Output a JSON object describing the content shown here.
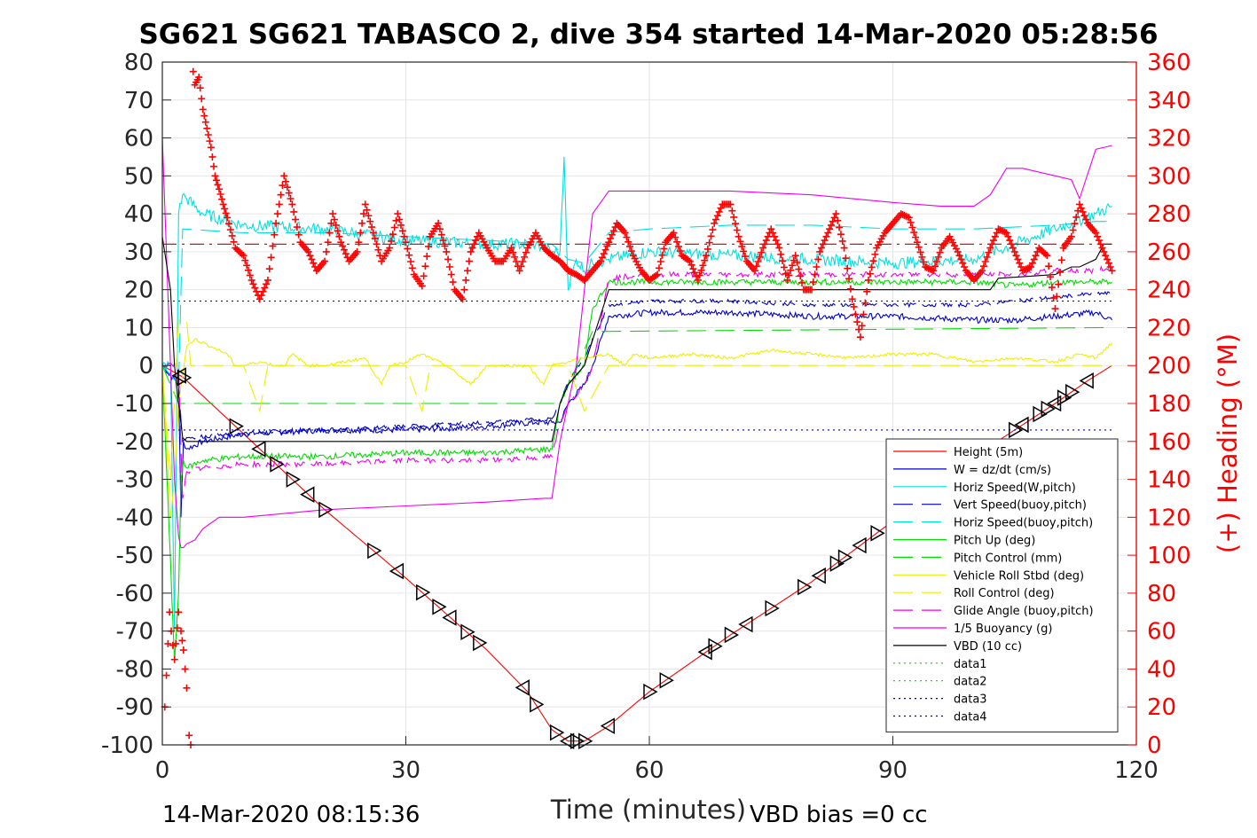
{
  "chart_data": {
    "type": "line",
    "title": "SG621 SG621 TABASCO 2, dive 354 started 14-Mar-2020 05:28:56",
    "xlabel": "Time (minutes)",
    "ylabel_right": "(+) Heading (°M)",
    "xlim": [
      0,
      120
    ],
    "ylim": [
      -100,
      80
    ],
    "ylim_right": [
      0,
      360
    ],
    "x_ticks": [
      "0",
      "30",
      "60",
      "90",
      "120"
    ],
    "y_ticks": [
      "80",
      "70",
      "60",
      "50",
      "40",
      "30",
      "20",
      "10",
      "0",
      "-10",
      "-20",
      "-30",
      "-40",
      "-50",
      "-60",
      "-70",
      "-80",
      "-90",
      "-100"
    ],
    "y_right_ticks": [
      "360",
      "340",
      "320",
      "300",
      "280",
      "260",
      "240",
      "220",
      "200",
      "180",
      "160",
      "140",
      "120",
      "100",
      "80",
      "60",
      "40",
      "20",
      "0"
    ],
    "grid": true,
    "legend_placement": "bottom-right",
    "footer_left": "14-Mar-2020 08:15:36",
    "footer_right": "VBD bias =0 cc",
    "legend": [
      {
        "name": "Height (5m)",
        "color": "#ff0000",
        "dash": "solid"
      },
      {
        "name": "W = dz/dt (cm/s)",
        "color": "#0000cc",
        "dash": "solid"
      },
      {
        "name": "Horiz Speed(W,pitch)",
        "color": "#00e0e0",
        "dash": "solid"
      },
      {
        "name": "Vert Speed(buoy,pitch)",
        "color": "#0000cc",
        "dash": "dashed"
      },
      {
        "name": "Horiz Speed(buoy,pitch)",
        "color": "#00e0e0",
        "dash": "dashed"
      },
      {
        "name": "Pitch Up (deg)",
        "color": "#00dd00",
        "dash": "solid"
      },
      {
        "name": "Pitch Control (mm)",
        "color": "#00dd00",
        "dash": "dashed"
      },
      {
        "name": "Vehicle Roll Stbd (deg)",
        "color": "#eeee00",
        "dash": "solid"
      },
      {
        "name": "Roll Control (deg)",
        "color": "#eeee00",
        "dash": "dashed"
      },
      {
        "name": "Glide Angle (buoy,pitch)",
        "color": "#ee00ee",
        "dash": "dashed"
      },
      {
        "name": "1/5 Buoyancy (g)",
        "color": "#ee00ee",
        "dash": "solid"
      },
      {
        "name": "VBD (10 cc)",
        "color": "#000000",
        "dash": "solid"
      },
      {
        "name": "data1",
        "color": "#00dd00",
        "dash": "dotted"
      },
      {
        "name": "data2",
        "color": "#00dd00",
        "dash": "dotted"
      },
      {
        "name": "data3",
        "color": "#0000cc",
        "dash": "dotted"
      },
      {
        "name": "data4",
        "color": "#0000cc",
        "dash": "dotted"
      }
    ],
    "series": [
      {
        "key": "height",
        "color": "#ff0000",
        "dash": "solid",
        "x": [
          0,
          2.5,
          10,
          20,
          30,
          40,
          45,
          48,
          50,
          52,
          55,
          60,
          70,
          80,
          90,
          100,
          105,
          110,
          114,
          117
        ],
        "y": [
          0,
          -3,
          -18,
          -38,
          -56,
          -75,
          -86,
          -96,
          -99,
          -99,
          -95,
          -86,
          -71,
          -57,
          -41,
          -24,
          -17,
          -10,
          -4,
          0
        ]
      },
      {
        "key": "w",
        "color": "#0000cc",
        "dash": "solid",
        "x": [
          0,
          2,
          2.3,
          2.6,
          3,
          5,
          10,
          20,
          30,
          40,
          46,
          48,
          49,
          50,
          52,
          53,
          55,
          60,
          70,
          80,
          90,
          100,
          105,
          110,
          115,
          117
        ],
        "y": [
          0,
          -5,
          -40,
          -20,
          -22,
          -20,
          -18,
          -17,
          -17,
          -16,
          -15,
          -15,
          -15,
          -10,
          -5,
          0,
          13,
          14,
          14,
          13,
          13,
          12,
          12,
          13,
          14,
          12
        ]
      },
      {
        "key": "horiz_w",
        "color": "#00e0e0",
        "dash": "solid",
        "x": [
          0,
          1,
          1.5,
          2,
          2.5,
          3,
          5,
          10,
          20,
          30,
          40,
          46,
          48,
          49,
          49.5,
          50,
          51,
          52,
          53,
          55,
          60,
          70,
          80,
          90,
          100,
          105,
          110,
          115,
          117
        ],
        "y": [
          0,
          0,
          -70,
          40,
          45,
          44,
          40,
          37,
          36,
          33,
          32,
          32,
          30,
          30,
          55,
          20,
          28,
          25,
          27,
          28,
          30,
          29,
          28,
          27,
          28,
          32,
          36,
          40,
          42
        ]
      },
      {
        "key": "vert_buoy",
        "color": "#0000cc",
        "dash": "dashed",
        "x": [
          0,
          2,
          2.5,
          3,
          10,
          20,
          30,
          40,
          48,
          49,
          50,
          52,
          55,
          60,
          70,
          80,
          90,
          100,
          105,
          110,
          115,
          117
        ],
        "y": [
          0,
          -5,
          -20,
          -19,
          -18,
          -17,
          -16,
          -15,
          -14,
          -10,
          -4,
          2,
          16,
          17,
          17,
          16,
          16,
          16,
          17,
          18,
          19,
          19
        ]
      },
      {
        "key": "horiz_buoy",
        "color": "#00e0e0",
        "dash": "dashed",
        "x": [
          0,
          2,
          2.5,
          10,
          20,
          30,
          40,
          48,
          50,
          52,
          55,
          60,
          70,
          80,
          90,
          100,
          110,
          115,
          117
        ],
        "y": [
          0,
          -5,
          36,
          35,
          35,
          34,
          33,
          32,
          28,
          27,
          35,
          36,
          37,
          37,
          36,
          36,
          37,
          38,
          38
        ]
      },
      {
        "key": "pitch",
        "color": "#00dd00",
        "dash": "solid",
        "x": [
          0,
          1.5,
          2,
          2.3,
          2.6,
          3,
          5,
          10,
          20,
          30,
          40,
          48,
          49,
          50,
          52,
          53,
          55,
          60,
          70,
          80,
          90,
          100,
          105,
          110,
          115,
          117
        ],
        "y": [
          0,
          -78,
          -60,
          -30,
          -25,
          -27,
          -25,
          -24,
          -24,
          -23,
          -23,
          -22,
          -10,
          -5,
          0,
          15,
          22,
          22,
          22,
          22,
          22,
          22,
          21,
          22,
          22,
          22
        ]
      },
      {
        "key": "pitch_ctrl",
        "color": "#00dd00",
        "dash": "dashed",
        "x": [
          0,
          2,
          3,
          48,
          49,
          53,
          55,
          117
        ],
        "y": [
          0,
          -10,
          -10,
          -10,
          -10,
          9,
          9,
          10
        ]
      },
      {
        "key": "roll",
        "color": "#eeee00",
        "dash": "solid",
        "x": [
          0,
          1,
          1.5,
          2,
          3,
          4,
          6,
          8,
          9,
          10,
          12,
          14,
          15,
          16,
          18,
          20,
          25,
          27,
          28,
          30,
          32,
          35,
          38,
          40,
          45,
          47,
          48,
          50,
          52,
          55,
          57,
          58,
          60,
          65,
          70,
          75,
          80,
          85,
          90,
          95,
          100,
          105,
          110,
          113,
          115,
          117
        ],
        "y": [
          0,
          -40,
          -30,
          -10,
          5,
          7,
          5,
          3,
          0,
          0,
          1,
          0,
          0,
          3,
          0,
          0,
          2,
          -5,
          0,
          1,
          3,
          0,
          -5,
          0,
          0,
          -5,
          0,
          1,
          2,
          3,
          0,
          3,
          2,
          3,
          2,
          4,
          3,
          2,
          3,
          3,
          1,
          2,
          1,
          3,
          2,
          6
        ]
      },
      {
        "key": "roll_ctrl",
        "color": "#eeee00",
        "dash": "dashed",
        "x": [
          0,
          1,
          2,
          3,
          3.5,
          10,
          12,
          13,
          14,
          30,
          32,
          33,
          34,
          48,
          49,
          50,
          52,
          55,
          60,
          70,
          80,
          90,
          100,
          110,
          115,
          117
        ],
        "y": [
          0,
          -30,
          12,
          12,
          0,
          0,
          -12,
          0,
          0,
          0,
          -12,
          0,
          0,
          0,
          0,
          0,
          -12,
          0,
          0,
          0,
          0,
          0,
          0,
          0,
          0,
          0
        ]
      },
      {
        "key": "glide",
        "color": "#ee00ee",
        "dash": "dashed",
        "x": [
          0,
          2,
          2.5,
          3,
          5,
          10,
          20,
          30,
          40,
          48,
          49,
          50,
          52,
          53,
          55,
          60,
          70,
          80,
          90,
          100,
          105,
          110,
          115,
          117
        ],
        "y": [
          0,
          0,
          -35,
          -28,
          -27,
          -26,
          -26,
          -25,
          -25,
          -24,
          -15,
          -10,
          -5,
          0,
          23,
          24,
          24,
          24,
          24,
          24,
          24,
          25,
          25,
          26
        ]
      },
      {
        "key": "buoyancy",
        "color": "#ee00ee",
        "dash": "solid",
        "x": [
          0,
          0.5,
          1,
          1.5,
          2,
          2.3,
          2.6,
          3,
          4,
          5,
          7,
          10,
          20,
          30,
          40,
          47,
          48,
          49,
          51,
          52,
          53,
          55,
          60,
          70,
          80,
          90,
          96,
          100,
          102,
          104,
          106,
          110,
          112,
          113,
          115,
          117
        ],
        "y": [
          60,
          30,
          0,
          -30,
          -45,
          -48,
          -48,
          -47,
          -46,
          -43,
          -40,
          -40,
          -38,
          -37,
          -36,
          -35,
          -35,
          -20,
          0,
          20,
          40,
          46,
          46,
          46,
          45,
          43,
          42,
          42,
          45,
          52,
          52,
          50,
          49,
          44,
          57,
          58
        ]
      },
      {
        "key": "vbd",
        "color": "#000000",
        "dash": "solid",
        "x": [
          0,
          1,
          1.5,
          2,
          2.5,
          3,
          10,
          20,
          30,
          40,
          48,
          49,
          50,
          52,
          55,
          60,
          70,
          80,
          90,
          100,
          102,
          103,
          110,
          112,
          113,
          115,
          116,
          117
        ],
        "y": [
          34,
          20,
          0,
          -10,
          -19,
          -20,
          -20,
          -20,
          -20,
          -20,
          -20,
          -10,
          -5,
          0,
          20,
          20,
          20,
          20,
          20,
          20,
          20,
          23,
          24,
          26,
          26,
          28,
          32,
          32
        ]
      },
      {
        "key": "data1",
        "color": "#00dd00",
        "dash": "dotted",
        "x": [
          0,
          117
        ],
        "y": [
          -100,
          -100
        ]
      },
      {
        "key": "data2",
        "color": "#00dd00",
        "dash": "dotted",
        "x": [
          0,
          117
        ],
        "y": [
          -100,
          -100
        ]
      },
      {
        "key": "data3",
        "color": "#0000cc",
        "dash": "dotted",
        "x": [
          0,
          117
        ],
        "y": [
          17,
          17
        ]
      },
      {
        "key": "data4",
        "color": "#0000cc",
        "dash": "dotted",
        "x": [
          0,
          117
        ],
        "y": [
          -17,
          -17
        ]
      },
      {
        "key": "ref_dashdot",
        "color": "#bb0000",
        "dash": "dashdot",
        "x": [
          0,
          117
        ],
        "y": [
          32,
          32
        ]
      }
    ],
    "heading": {
      "color": "#ff0000",
      "axis": "right",
      "x": [
        0.3,
        0.9,
        1.1,
        1.5,
        2,
        2.3,
        2.6,
        3,
        3.3,
        3.5,
        3.8,
        4,
        4.5,
        5,
        5.5,
        6,
        6.5,
        7,
        7.5,
        8,
        9,
        10,
        11,
        12,
        13,
        14,
        15,
        16,
        17,
        18,
        19,
        20,
        21,
        22,
        23,
        24,
        25,
        26,
        27,
        28,
        29,
        30,
        31,
        32,
        33,
        34,
        35,
        36,
        37,
        38,
        39,
        40,
        41,
        42,
        43,
        44,
        45,
        46,
        47,
        48,
        49,
        50,
        51,
        52,
        53,
        54,
        55,
        56,
        57,
        58,
        59,
        60,
        61,
        62,
        63,
        64,
        65,
        66,
        67,
        68,
        69,
        70,
        71,
        72,
        73,
        74,
        75,
        76,
        77,
        78,
        79,
        80,
        81,
        82,
        83,
        84,
        85,
        86,
        87,
        88,
        89,
        90,
        91,
        92,
        93,
        94,
        95,
        96,
        97,
        98,
        99,
        100,
        101,
        102,
        103,
        104,
        105,
        106,
        107,
        108,
        109,
        110,
        111,
        112,
        113,
        114,
        115,
        116,
        117
      ],
      "y": [
        20,
        70,
        60,
        45,
        70,
        60,
        50,
        30,
        5,
        0,
        355,
        348,
        352,
        335,
        325,
        315,
        300,
        293,
        285,
        278,
        262,
        258,
        245,
        235,
        245,
        275,
        300,
        285,
        265,
        260,
        250,
        255,
        280,
        265,
        255,
        260,
        285,
        270,
        255,
        262,
        280,
        265,
        248,
        242,
        268,
        275,
        260,
        240,
        235,
        260,
        270,
        262,
        255,
        255,
        262,
        250,
        262,
        270,
        262,
        258,
        255,
        250,
        248,
        245,
        250,
        255,
        265,
        275,
        270,
        258,
        250,
        245,
        248,
        265,
        270,
        258,
        255,
        245,
        258,
        275,
        285,
        285,
        268,
        255,
        250,
        262,
        272,
        262,
        245,
        258,
        240,
        240,
        260,
        270,
        280,
        262,
        235,
        215,
        245,
        262,
        270,
        275,
        280,
        278,
        265,
        252,
        250,
        262,
        268,
        260,
        250,
        245,
        250,
        262,
        272,
        270,
        260,
        250,
        252,
        262,
        258,
        230,
        262,
        268,
        285,
        275,
        270,
        260,
        250
      ]
    }
  }
}
